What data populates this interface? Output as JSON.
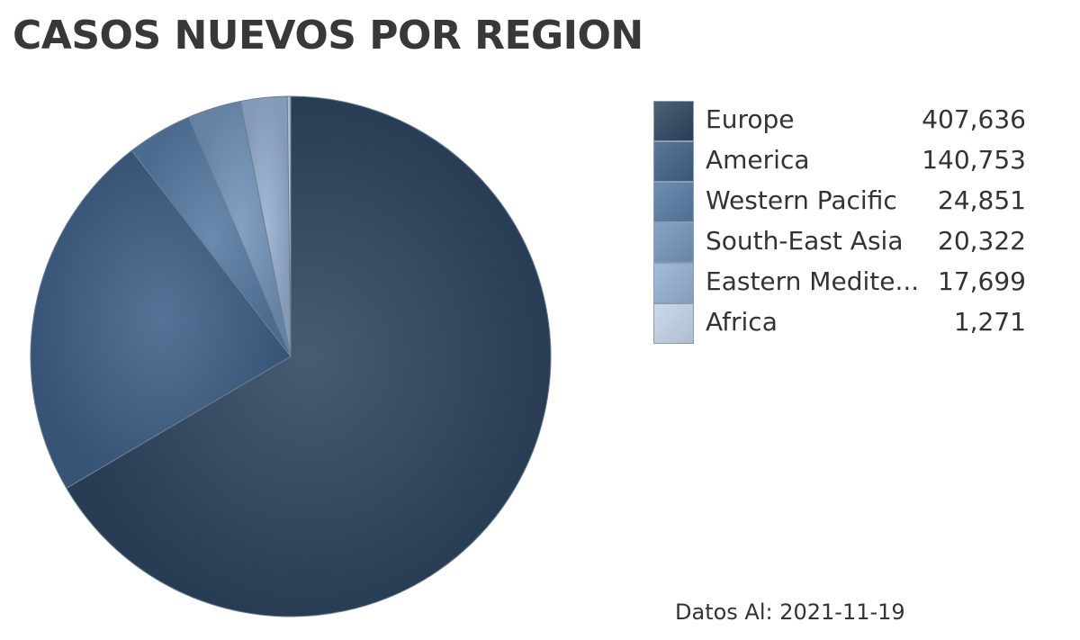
{
  "chart_data": {
    "type": "pie",
    "title": "CASOS NUEVOS POR REGION",
    "footnote": "Datos Al: 2021-11-19",
    "legend_position": "right",
    "slices": [
      {
        "label": "Europe",
        "value": 407636,
        "value_text": "407,636",
        "color": "#2e4560"
      },
      {
        "label": "America",
        "value": 140753,
        "value_text": "140,753",
        "color": "#3f5f86"
      },
      {
        "label": "Western Pacific",
        "value": 24851,
        "value_text": "24,851",
        "color": "#577aa3"
      },
      {
        "label": "South-East Asia",
        "value": 20322,
        "value_text": "20,322",
        "color": "#7394bb"
      },
      {
        "label": "Eastern Medite...",
        "value": 17699,
        "value_text": "17,699",
        "color": "#95b0d1"
      },
      {
        "label": "Africa",
        "value": 1271,
        "value_text": "1,271",
        "color": "#c2d3e6"
      }
    ]
  }
}
